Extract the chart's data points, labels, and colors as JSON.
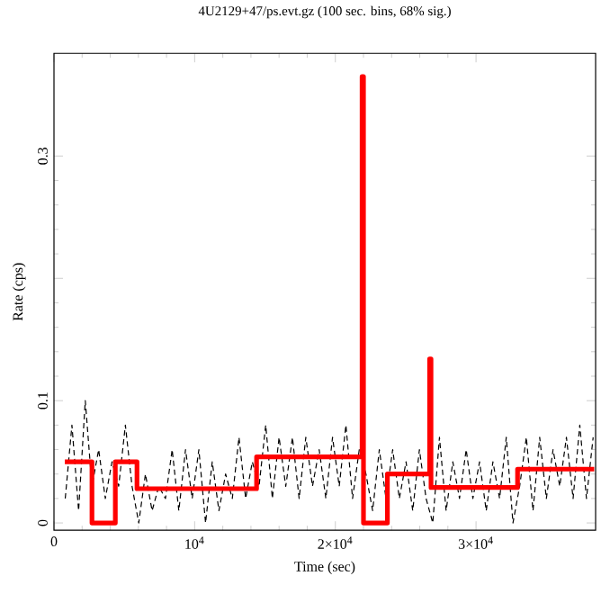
{
  "chart_data": {
    "type": "line",
    "title": "4U2129+47/ps.evt.gz (100 sec. bins, 68% sig.)",
    "xlabel": "Time (sec)",
    "ylabel": "Rate (cps)",
    "xlim": [
      0,
      38500
    ],
    "ylim": [
      -0.006,
      0.384
    ],
    "xticks": [
      0,
      {
        "value": 10000,
        "label": "10$^{4}$"
      },
      {
        "value": 20000,
        "label": "2×10$^{4}$"
      },
      {
        "value": 30000,
        "label": "3×10$^{4}$"
      }
    ],
    "yticks": [
      0,
      0.1,
      {
        "value": 0.2,
        "label": null
      },
      0.3
    ],
    "grid": false,
    "series": [
      {
        "line_style": "dotted",
        "color": "#000000",
        "x": [
          800,
          1275,
          1750,
          2225,
          2700,
          3175,
          3650,
          4125,
          4600,
          5075,
          5550,
          6025,
          6500,
          6975,
          7450,
          7925,
          8400,
          8875,
          9350,
          9825,
          10300,
          10775,
          11250,
          11725,
          12200,
          12675,
          13150,
          13625,
          14100,
          14575,
          15050,
          15525,
          16000,
          16475,
          16950,
          17425,
          17900,
          18375,
          18850,
          19325,
          19800,
          20275,
          20750,
          21225,
          21700,
          22175,
          22650,
          23125,
          23600,
          24075,
          24550,
          25025,
          25500,
          25975,
          26450,
          26925,
          27400,
          27875,
          28350,
          28825,
          29300,
          29775,
          30250,
          30725,
          31200,
          31675,
          32150,
          32625,
          33100,
          33575,
          34050,
          34525,
          35000,
          35475,
          35950,
          36425,
          36900,
          37375,
          37850,
          38325
        ],
        "values": [
          0.02,
          0.08,
          0.01,
          0.1,
          0.03,
          0.06,
          0.02,
          0.05,
          0.03,
          0.08,
          0.03,
          0.0,
          0.04,
          0.01,
          0.03,
          0.02,
          0.06,
          0.01,
          0.06,
          0.02,
          0.06,
          0.0,
          0.05,
          0.01,
          0.04,
          0.02,
          0.07,
          0.02,
          0.05,
          0.03,
          0.08,
          0.02,
          0.07,
          0.03,
          0.07,
          0.02,
          0.07,
          0.03,
          0.06,
          0.02,
          0.07,
          0.03,
          0.08,
          0.02,
          0.06,
          0.04,
          0.01,
          0.06,
          0.02,
          0.06,
          0.02,
          0.05,
          0.01,
          0.06,
          0.02,
          0.0,
          0.07,
          0.01,
          0.05,
          0.02,
          0.06,
          0.02,
          0.05,
          0.01,
          0.05,
          0.02,
          0.07,
          0.0,
          0.03,
          0.07,
          0.01,
          0.07,
          0.02,
          0.06,
          0.03,
          0.07,
          0.02,
          0.08,
          0.02,
          0.07
        ]
      },
      {
        "type": "step",
        "color": "#ff0000",
        "x": [
          770,
          2700,
          4360,
          5900,
          14400,
          21900,
          22000,
          23700,
          26700,
          26800,
          32950,
          38400
        ],
        "values": [
          0.05,
          0,
          0.05,
          0.028,
          0.054,
          0.365,
          0,
          0.04,
          0.134,
          0.029,
          0.044,
          0.044
        ]
      }
    ]
  }
}
